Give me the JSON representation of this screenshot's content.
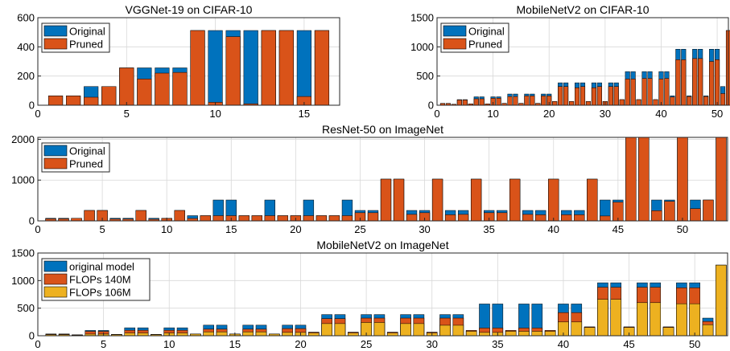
{
  "figure_colors": {
    "blue": "#0072BD",
    "orange": "#D95319",
    "yellow": "#EDB120",
    "edge": "#000000",
    "grid": "#d8d8d8"
  },
  "chart_data": [
    {
      "type": "bar",
      "title": "VGGNet-19 on CIFAR-10",
      "xlabel": "",
      "ylabel": "",
      "xlim": [
        0,
        17
      ],
      "ylim": [
        0,
        600
      ],
      "xticks": [
        0,
        5,
        10,
        15
      ],
      "yticks": [
        0,
        200,
        400,
        600
      ],
      "grid": true,
      "legend_position": "top-left",
      "overlay": true,
      "categories": [
        1,
        2,
        3,
        4,
        5,
        6,
        7,
        8,
        9,
        10,
        11,
        12,
        13,
        14,
        15,
        16
      ],
      "series": [
        {
          "name": "Original",
          "color": "blue",
          "values": [
            64,
            64,
            128,
            128,
            256,
            256,
            256,
            256,
            512,
            512,
            512,
            512,
            512,
            512,
            512,
            512
          ]
        },
        {
          "name": "Pruned",
          "color": "orange",
          "values": [
            64,
            64,
            55,
            128,
            256,
            180,
            220,
            225,
            512,
            20,
            470,
            10,
            512,
            512,
            60,
            512
          ]
        }
      ]
    },
    {
      "type": "bar",
      "title": "MobileNetV2 on CIFAR-10",
      "xlabel": "",
      "ylabel": "",
      "xlim": [
        0,
        52
      ],
      "ylim": [
        0,
        1500
      ],
      "xticks": [
        0,
        10,
        20,
        30,
        40,
        50
      ],
      "yticks": [
        0,
        500,
        1000,
        1500
      ],
      "grid": true,
      "legend_position": "top-left",
      "overlay": true,
      "categories": [
        1,
        2,
        3,
        4,
        5,
        6,
        7,
        8,
        9,
        10,
        11,
        12,
        13,
        14,
        15,
        16,
        17,
        18,
        19,
        20,
        21,
        22,
        23,
        24,
        25,
        26,
        27,
        28,
        29,
        30,
        31,
        32,
        33,
        34,
        35,
        36,
        37,
        38,
        39,
        40,
        41,
        42,
        43,
        44,
        45,
        46,
        47,
        48,
        49,
        50,
        51,
        52
      ],
      "series": [
        {
          "name": "Original",
          "color": "blue",
          "values": [
            32,
            32,
            16,
            96,
            96,
            24,
            144,
            144,
            24,
            144,
            144,
            32,
            192,
            192,
            32,
            192,
            192,
            32,
            192,
            192,
            64,
            384,
            384,
            64,
            384,
            384,
            64,
            384,
            384,
            64,
            384,
            384,
            96,
            576,
            576,
            96,
            576,
            576,
            96,
            576,
            576,
            160,
            960,
            960,
            160,
            960,
            960,
            160,
            960,
            960,
            320,
            1280
          ]
        },
        {
          "name": "Pruned",
          "color": "orange",
          "values": [
            30,
            30,
            16,
            90,
            90,
            24,
            110,
            110,
            24,
            120,
            120,
            32,
            150,
            150,
            32,
            160,
            160,
            32,
            160,
            160,
            64,
            320,
            320,
            64,
            300,
            320,
            64,
            300,
            320,
            64,
            320,
            320,
            96,
            450,
            450,
            96,
            460,
            460,
            96,
            450,
            460,
            140,
            780,
            780,
            150,
            800,
            800,
            150,
            750,
            780,
            200,
            1280
          ]
        }
      ]
    },
    {
      "type": "bar",
      "title": "ResNet-50 on ImageNet",
      "xlabel": "",
      "ylabel": "",
      "xlim": [
        0,
        53.5
      ],
      "ylim": [
        0,
        2048
      ],
      "xticks": [
        0,
        5,
        10,
        15,
        20,
        25,
        30,
        35,
        40,
        45,
        50
      ],
      "yticks": [
        0,
        1000,
        2000
      ],
      "grid": true,
      "legend_position": "top-left",
      "overlay": true,
      "categories": [
        1,
        2,
        3,
        4,
        5,
        6,
        7,
        8,
        9,
        10,
        11,
        12,
        13,
        14,
        15,
        16,
        17,
        18,
        19,
        20,
        21,
        22,
        23,
        24,
        25,
        26,
        27,
        28,
        29,
        30,
        31,
        32,
        33,
        34,
        35,
        36,
        37,
        38,
        39,
        40,
        41,
        42,
        43,
        44,
        45,
        46,
        47,
        48,
        49,
        50,
        51,
        52,
        53
      ],
      "series": [
        {
          "name": "Original",
          "color": "blue",
          "values": [
            64,
            64,
            64,
            256,
            256,
            64,
            64,
            256,
            64,
            64,
            256,
            128,
            128,
            512,
            512,
            128,
            128,
            512,
            128,
            128,
            512,
            128,
            128,
            512,
            256,
            256,
            1024,
            1024,
            256,
            256,
            1024,
            256,
            256,
            1024,
            256,
            256,
            1024,
            256,
            256,
            1024,
            256,
            256,
            1024,
            512,
            512,
            2048,
            2048,
            512,
            512,
            2048,
            512,
            512,
            2048
          ]
        },
        {
          "name": "Pruned",
          "color": "orange",
          "values": [
            50,
            50,
            64,
            256,
            256,
            45,
            45,
            256,
            40,
            60,
            256,
            60,
            128,
            128,
            128,
            128,
            128,
            128,
            128,
            128,
            128,
            128,
            128,
            128,
            200,
            200,
            1024,
            1024,
            160,
            200,
            1024,
            150,
            160,
            1024,
            200,
            200,
            1024,
            160,
            150,
            1024,
            150,
            150,
            1024,
            120,
            460,
            2048,
            2048,
            250,
            480,
            2048,
            300,
            512,
            2048
          ]
        }
      ]
    },
    {
      "type": "bar",
      "title": "MobileNetV2 on ImageNet",
      "xlabel": "",
      "ylabel": "",
      "xlim": [
        0,
        52.5
      ],
      "ylim": [
        0,
        1500
      ],
      "xticks": [
        0,
        5,
        10,
        15,
        20,
        25,
        30,
        35,
        40,
        45,
        50
      ],
      "yticks": [
        0,
        500,
        1000,
        1500
      ],
      "grid": true,
      "legend_position": "top-left",
      "overlay": true,
      "categories": [
        1,
        2,
        3,
        4,
        5,
        6,
        7,
        8,
        9,
        10,
        11,
        12,
        13,
        14,
        15,
        16,
        17,
        18,
        19,
        20,
        21,
        22,
        23,
        24,
        25,
        26,
        27,
        28,
        29,
        30,
        31,
        32,
        33,
        34,
        35,
        36,
        37,
        38,
        39,
        40,
        41,
        42,
        43,
        44,
        45,
        46,
        47,
        48,
        49,
        50,
        51,
        52
      ],
      "series": [
        {
          "name": "original model",
          "color": "blue",
          "values": [
            32,
            32,
            16,
            96,
            96,
            24,
            144,
            144,
            24,
            144,
            144,
            32,
            192,
            192,
            32,
            192,
            192,
            32,
            192,
            192,
            64,
            384,
            384,
            64,
            384,
            384,
            64,
            384,
            384,
            64,
            384,
            384,
            96,
            576,
            576,
            96,
            576,
            576,
            96,
            576,
            576,
            160,
            960,
            960,
            160,
            960,
            960,
            160,
            960,
            960,
            320,
            1280
          ]
        },
        {
          "name": "FLOPs 140M",
          "color": "orange",
          "values": [
            28,
            28,
            16,
            80,
            80,
            24,
            100,
            100,
            24,
            100,
            100,
            32,
            120,
            120,
            32,
            120,
            120,
            32,
            130,
            130,
            64,
            310,
            310,
            64,
            320,
            320,
            64,
            320,
            320,
            64,
            320,
            320,
            96,
            140,
            140,
            96,
            140,
            140,
            96,
            420,
            420,
            160,
            880,
            880,
            160,
            880,
            880,
            160,
            870,
            870,
            260,
            1280
          ]
        },
        {
          "name": "FLOPs 106M",
          "color": "yellow",
          "values": [
            20,
            20,
            12,
            30,
            30,
            20,
            50,
            50,
            20,
            50,
            50,
            30,
            70,
            70,
            30,
            70,
            70,
            30,
            60,
            60,
            50,
            220,
            220,
            50,
            240,
            240,
            50,
            220,
            220,
            50,
            190,
            190,
            80,
            60,
            60,
            80,
            80,
            80,
            80,
            250,
            250,
            150,
            660,
            660,
            150,
            600,
            600,
            150,
            580,
            580,
            200,
            1280
          ]
        }
      ]
    }
  ]
}
